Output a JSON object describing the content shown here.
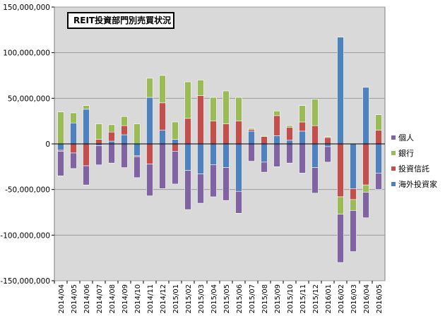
{
  "chart_data": {
    "type": "bar",
    "stacked": true,
    "title": "REIT投資部門別売買状況",
    "categories": [
      "2014/04",
      "2014/05",
      "2014/06",
      "2014/07",
      "2014/08",
      "2014/09",
      "2014/10",
      "2014/11",
      "2014/12",
      "2015/01",
      "2015/02",
      "2015/03",
      "2015/04",
      "2015/05",
      "2015/06",
      "2015/07",
      "2015/08",
      "2015/09",
      "2015/10",
      "2015/11",
      "2015/12",
      "2016/01",
      "2016/02",
      "2016/03",
      "2016/04",
      "2016/05"
    ],
    "ylim": [
      -150000000,
      150000000
    ],
    "yticks": [
      -150000000,
      -100000000,
      -50000000,
      0,
      50000000,
      100000000,
      150000000
    ],
    "ytick_labels": [
      "-150,000,000",
      "-100,000,000",
      "-50,000,000",
      "0",
      "50,000,000",
      "100,000,000",
      "150,000,000"
    ],
    "legend_position": "right",
    "series": [
      {
        "name": "海外投資家",
        "color": "#4f81bd",
        "values": [
          -7000000,
          23000000,
          38000000,
          -2000000,
          3000000,
          10000000,
          -13000000,
          51000000,
          15000000,
          5000000,
          -29000000,
          -33000000,
          -23000000,
          -26000000,
          -52000000,
          14000000,
          -20000000,
          9000000,
          4000000,
          14000000,
          -26000000,
          -3000000,
          117000000,
          -49000000,
          62000000,
          -32000000
        ]
      },
      {
        "name": "投資信託",
        "color": "#c0504d",
        "values": [
          -1000000,
          -10000000,
          -24000000,
          5000000,
          10000000,
          10000000,
          -1000000,
          -22000000,
          30000000,
          -8000000,
          28000000,
          53000000,
          25000000,
          22000000,
          25000000,
          2000000,
          8000000,
          22000000,
          14000000,
          10000000,
          20000000,
          7000000,
          -58000000,
          -12000000,
          -45000000,
          15000000
        ]
      },
      {
        "name": "銀行",
        "color": "#9bbb59",
        "values": [
          35000000,
          11000000,
          4000000,
          17000000,
          8000000,
          10000000,
          22000000,
          21000000,
          30000000,
          19000000,
          40000000,
          17000000,
          26000000,
          36000000,
          26000000,
          1000000,
          1000000,
          5000000,
          2000000,
          18000000,
          29000000,
          1000000,
          -19000000,
          -12000000,
          -8000000,
          17000000
        ]
      },
      {
        "name": "個人",
        "color": "#8064a2",
        "values": [
          -27000000,
          -17000000,
          -21000000,
          -21000000,
          -21000000,
          -26000000,
          -23000000,
          -35000000,
          -49000000,
          -36000000,
          -43000000,
          -32000000,
          -35000000,
          -36000000,
          -24000000,
          -19000000,
          -11000000,
          -25000000,
          -21000000,
          -32000000,
          -28000000,
          -17000000,
          -53000000,
          -45000000,
          -28000000,
          -18000000
        ]
      }
    ],
    "legend_order": [
      "個人",
      "銀行",
      "投資信託",
      "海外投資家"
    ]
  }
}
